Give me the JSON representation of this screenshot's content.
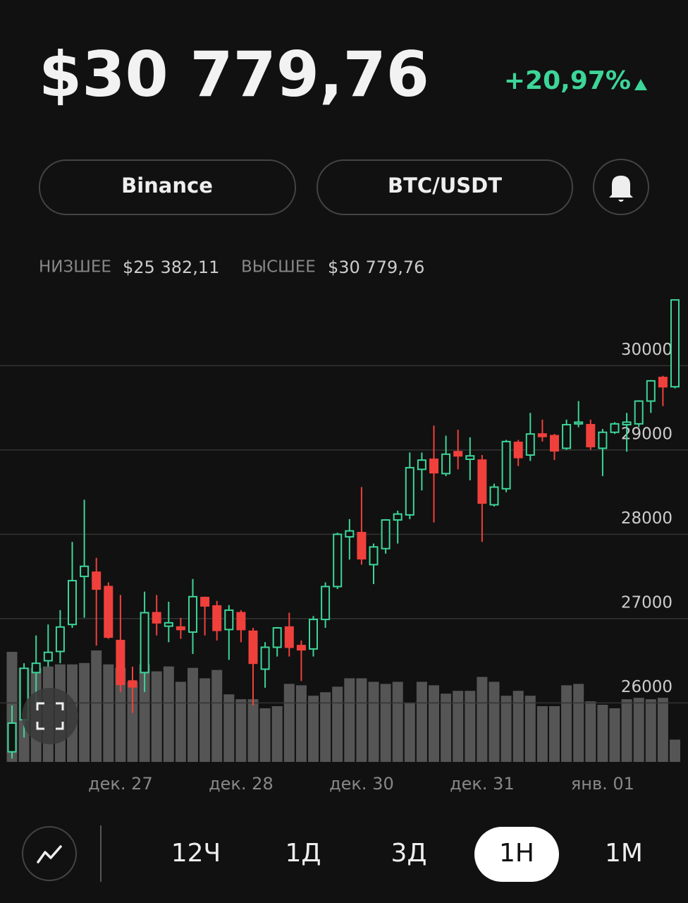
{
  "price": "$30 779,76",
  "change": "+20,97%",
  "exchange": "Binance",
  "pair": "BTC/USDT",
  "low_label": "НИЗШЕЕ",
  "low": "$25 382,11",
  "high_label": "ВЫСШЕЕ",
  "high": "$30 779,76",
  "timeframes": [
    "12Ч",
    "1Д",
    "3Д",
    "1Н",
    "1М"
  ],
  "active_timeframe": 3,
  "chart_data": {
    "type": "candlestick",
    "categories": [
      null,
      null,
      null,
      null,
      null,
      null,
      null,
      null,
      null,
      "дек. 27",
      null,
      null,
      null,
      null,
      null,
      null,
      null,
      null,
      null,
      "дек. 28",
      null,
      null,
      null,
      null,
      null,
      null,
      null,
      null,
      null,
      "дек. 30",
      null,
      null,
      null,
      null,
      null,
      null,
      null,
      null,
      null,
      "дек. 31",
      null,
      null,
      null,
      null,
      null,
      null,
      null,
      null,
      null,
      "янв. 01",
      null,
      null,
      null,
      null,
      null,
      null
    ],
    "open": [
      25420,
      25800,
      26360,
      26500,
      26610,
      26930,
      27500,
      27550,
      27380,
      26740,
      26260,
      26360,
      27070,
      26910,
      26900,
      26840,
      27250,
      27150,
      26870,
      27070,
      26850,
      26400,
      26660,
      26900,
      26680,
      26640,
      26990,
      27380,
      27970,
      28020,
      27640,
      27830,
      28170,
      28230,
      28770,
      28890,
      28720,
      28980,
      28890,
      28880,
      28350,
      28540,
      29090,
      28940,
      29190,
      29170,
      29020,
      29310,
      29300,
      29020,
      29210,
      29300,
      29310,
      29580,
      29860,
      29750
    ],
    "high": [
      25970,
      26470,
      26800,
      26930,
      27100,
      27910,
      28410,
      27720,
      27430,
      27280,
      26430,
      27320,
      27280,
      27200,
      27010,
      27470,
      27260,
      27210,
      27160,
      27100,
      26890,
      26720,
      26900,
      27070,
      26740,
      27030,
      27430,
      28020,
      28180,
      28560,
      27890,
      28180,
      28280,
      28970,
      28970,
      29290,
      29170,
      29240,
      29150,
      28940,
      28600,
      29120,
      29120,
      29440,
      29360,
      29190,
      29360,
      29580,
      29360,
      29250,
      29330,
      29440,
      29590,
      29830,
      29880,
      30780
    ],
    "low": [
      25340,
      25590,
      26010,
      26430,
      26470,
      26890,
      27010,
      26680,
      26760,
      26130,
      25880,
      26130,
      26800,
      26720,
      26760,
      26580,
      26800,
      26740,
      26510,
      26720,
      25970,
      26180,
      26550,
      26550,
      26260,
      26550,
      26890,
      27350,
      27700,
      27640,
      27410,
      27770,
      27890,
      28180,
      28520,
      28140,
      28690,
      28770,
      28640,
      27910,
      28330,
      28500,
      28810,
      28870,
      29100,
      28880,
      29000,
      29270,
      29000,
      28690,
      29190,
      28980,
      29270,
      29440,
      29520,
      29730
    ],
    "close": [
      25760,
      26410,
      26470,
      26600,
      26900,
      27450,
      27620,
      27350,
      26780,
      26220,
      26190,
      27070,
      26950,
      26950,
      26870,
      27260,
      27150,
      26860,
      27100,
      26870,
      26470,
      26660,
      26890,
      26660,
      26630,
      26990,
      27380,
      28000,
      28040,
      27710,
      27850,
      28170,
      28240,
      28790,
      28880,
      28730,
      28950,
      28930,
      28930,
      28370,
      28560,
      29100,
      28910,
      29190,
      29160,
      28990,
      29300,
      29330,
      29040,
      29210,
      29310,
      29330,
      29580,
      29820,
      29750,
      30780
    ],
    "volume": [
      158,
      135,
      135,
      137,
      140,
      140,
      142,
      160,
      140,
      135,
      115,
      140,
      130,
      137,
      115,
      135,
      120,
      132,
      97,
      90,
      90,
      77,
      80,
      112,
      110,
      95,
      100,
      108,
      120,
      120,
      115,
      112,
      115,
      85,
      115,
      110,
      98,
      102,
      102,
      122,
      115,
      95,
      102,
      95,
      80,
      80,
      110,
      112,
      87,
      82,
      77,
      90,
      92,
      90,
      92,
      32
    ],
    "ylim": [
      25300,
      30800
    ],
    "yticks": [
      26000,
      27000,
      28000,
      29000,
      30000
    ],
    "grid": true,
    "up_color": "#3dd598",
    "down_color": "#f0403c",
    "volume_color": "#555555"
  }
}
